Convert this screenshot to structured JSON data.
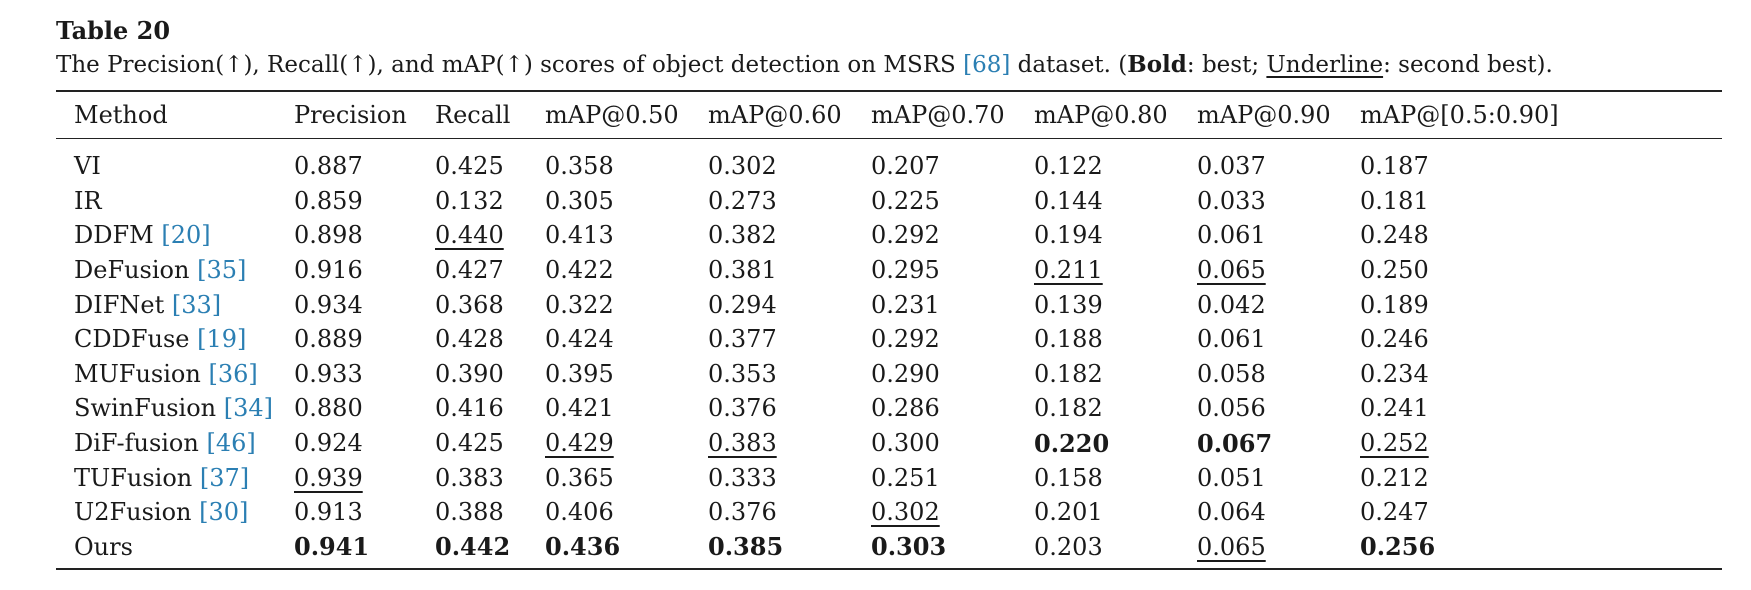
{
  "table_label": "Table 20",
  "caption": {
    "pre": "The Precision(↑), Recall(↑), and mAP(↑) scores of object detection on MSRS ",
    "cite": "[68]",
    "mid": " dataset. (",
    "bold_word": "Bold",
    "after_bold": ": best; ",
    "underline_word": "Underline",
    "post": ": second best)."
  },
  "columns": [
    "Method",
    "Precision",
    "Recall",
    "mAP@0.50",
    "mAP@0.60",
    "mAP@0.70",
    "mAP@0.80",
    "mAP@0.90",
    "mAP@[0.5:0.90]"
  ],
  "rows": [
    {
      "method": "VI",
      "cite": "",
      "values": [
        "0.887",
        "0.425",
        "0.358",
        "0.302",
        "0.207",
        "0.122",
        "0.037",
        "0.187"
      ],
      "best": [],
      "second": []
    },
    {
      "method": "IR",
      "cite": "",
      "values": [
        "0.859",
        "0.132",
        "0.305",
        "0.273",
        "0.225",
        "0.144",
        "0.033",
        "0.181"
      ],
      "best": [],
      "second": []
    },
    {
      "method": "DDFM",
      "cite": "[20]",
      "values": [
        "0.898",
        "0.440",
        "0.413",
        "0.382",
        "0.292",
        "0.194",
        "0.061",
        "0.248"
      ],
      "best": [],
      "second": [
        1
      ]
    },
    {
      "method": "DeFusion",
      "cite": "[35]",
      "values": [
        "0.916",
        "0.427",
        "0.422",
        "0.381",
        "0.295",
        "0.211",
        "0.065",
        "0.250"
      ],
      "best": [],
      "second": [
        5,
        6
      ]
    },
    {
      "method": "DIFNet",
      "cite": "[33]",
      "values": [
        "0.934",
        "0.368",
        "0.322",
        "0.294",
        "0.231",
        "0.139",
        "0.042",
        "0.189"
      ],
      "best": [],
      "second": []
    },
    {
      "method": "CDDFuse",
      "cite": "[19]",
      "values": [
        "0.889",
        "0.428",
        "0.424",
        "0.377",
        "0.292",
        "0.188",
        "0.061",
        "0.246"
      ],
      "best": [],
      "second": []
    },
    {
      "method": "MUFusion",
      "cite": "[36]",
      "values": [
        "0.933",
        "0.390",
        "0.395",
        "0.353",
        "0.290",
        "0.182",
        "0.058",
        "0.234"
      ],
      "best": [],
      "second": []
    },
    {
      "method": "SwinFusion",
      "cite": "[34]",
      "values": [
        "0.880",
        "0.416",
        "0.421",
        "0.376",
        "0.286",
        "0.182",
        "0.056",
        "0.241"
      ],
      "best": [],
      "second": []
    },
    {
      "method": "DiF-fusion",
      "cite": "[46]",
      "values": [
        "0.924",
        "0.425",
        "0.429",
        "0.383",
        "0.300",
        "0.220",
        "0.067",
        "0.252"
      ],
      "best": [
        5,
        6
      ],
      "second": [
        2,
        3,
        7
      ]
    },
    {
      "method": "TUFusion",
      "cite": "[37]",
      "values": [
        "0.939",
        "0.383",
        "0.365",
        "0.333",
        "0.251",
        "0.158",
        "0.051",
        "0.212"
      ],
      "best": [],
      "second": [
        0
      ]
    },
    {
      "method": "U2Fusion",
      "cite": "[30]",
      "values": [
        "0.913",
        "0.388",
        "0.406",
        "0.376",
        "0.302",
        "0.201",
        "0.064",
        "0.247"
      ],
      "best": [],
      "second": [
        4
      ]
    },
    {
      "method": "Ours",
      "cite": "",
      "values": [
        "0.941",
        "0.442",
        "0.436",
        "0.385",
        "0.303",
        "0.203",
        "0.065",
        "0.256"
      ],
      "best": [
        0,
        1,
        2,
        3,
        4,
        7
      ],
      "second": [
        6
      ]
    }
  ]
}
